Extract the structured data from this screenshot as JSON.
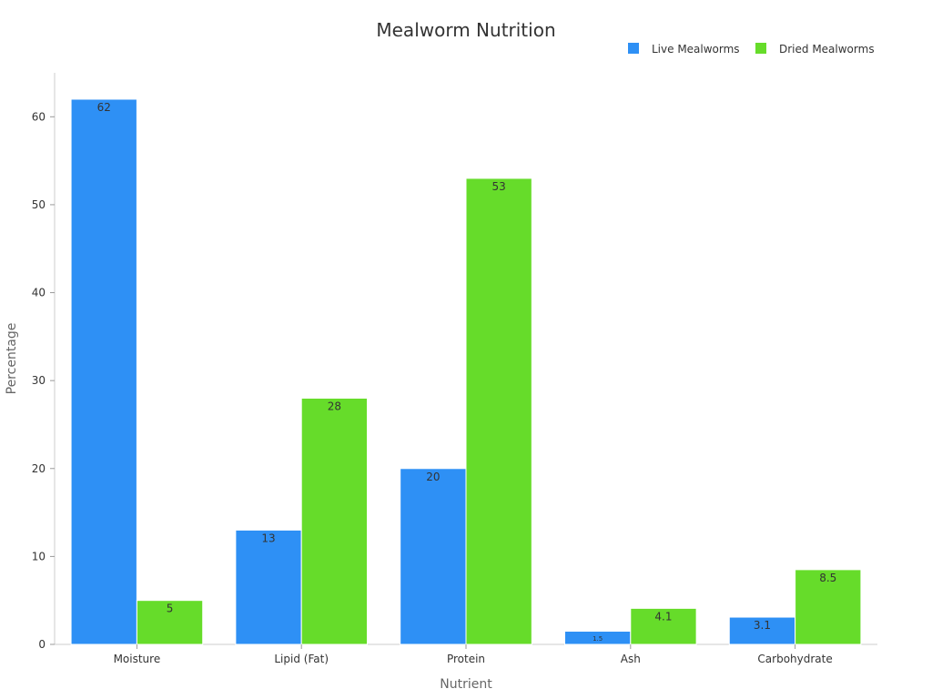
{
  "chart_data": {
    "type": "bar",
    "title": "Mealworm Nutrition",
    "xlabel": "Nutrient",
    "ylabel": "Percentage",
    "categories": [
      "Moisture",
      "Lipid (Fat)",
      "Protein",
      "Ash",
      "Carbohydrate"
    ],
    "series": [
      {
        "name": "Live Mealworms",
        "color": "#2e90f5",
        "values": [
          62,
          13,
          20,
          1.5,
          3.1
        ],
        "labels": [
          "62",
          "13",
          "20",
          "1.5",
          "3.1"
        ]
      },
      {
        "name": "Dried Mealworms",
        "color": "#66dc2a",
        "values": [
          5,
          28,
          53,
          4.1,
          8.5
        ],
        "labels": [
          "5",
          "28",
          "53",
          "4.1",
          "8.5"
        ]
      }
    ],
    "ylim": [
      0,
      65
    ],
    "yticks": [
      0,
      10,
      20,
      30,
      40,
      50,
      60
    ],
    "ytick_labels": [
      "0",
      "10",
      "20",
      "30",
      "40",
      "50",
      "60"
    ],
    "grid": false,
    "legend_position": "top-right"
  }
}
